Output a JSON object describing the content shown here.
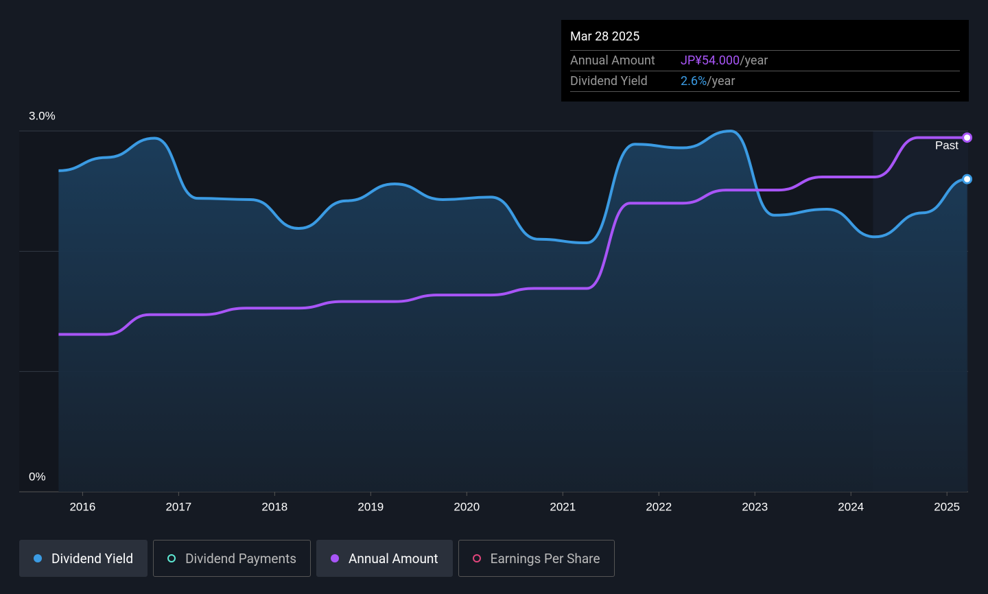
{
  "chart_data": {
    "type": "line",
    "tooltip": {
      "title": "Mar 28 2025",
      "rows": [
        {
          "label": "Annual Amount",
          "value_text": "JP¥54.000",
          "suffix": "/year",
          "color": "#a855f7"
        },
        {
          "label": "Dividend Yield",
          "value_text": "2.6%",
          "suffix": "/year",
          "color": "#3b9be3"
        }
      ]
    },
    "region_label": "Past",
    "region_start": 2024.23,
    "xlim": [
      2015.34,
      2025.22
    ],
    "xticks": [
      2016,
      2017,
      2018,
      2019,
      2020,
      2021,
      2022,
      2023,
      2024,
      2025
    ],
    "ylim": [
      0,
      3
    ],
    "yticks": [
      {
        "value": 0,
        "label": "0%"
      },
      {
        "value": 1,
        "label": null
      },
      {
        "value": 2,
        "label": null
      },
      {
        "value": 3,
        "label": "3.0%"
      }
    ],
    "y2lim": [
      0,
      55
    ],
    "series": [
      {
        "name": "Dividend Yield",
        "color": "#3b9be3",
        "visible": true,
        "x": [
          2015.75,
          2016.25,
          2016.75,
          2017.2,
          2017.75,
          2018.25,
          2018.75,
          2019.25,
          2019.75,
          2020.25,
          2020.75,
          2021.25,
          2021.75,
          2022.25,
          2022.75,
          2023.2,
          2023.75,
          2024.25,
          2024.75,
          2025.21
        ],
        "values": [
          2.67,
          2.78,
          2.94,
          2.44,
          2.43,
          2.19,
          2.42,
          2.56,
          2.43,
          2.45,
          2.1,
          2.07,
          2.89,
          2.86,
          3.0,
          2.3,
          2.35,
          2.12,
          2.32,
          2.6
        ]
      },
      {
        "name": "Dividend Payments",
        "color": "#5eead4",
        "visible": false,
        "x": [],
        "values": []
      },
      {
        "name": "Annual Amount",
        "color": "#a855f7",
        "visible": true,
        "axis": "y2",
        "x": [
          2015.75,
          2016.25,
          2016.7,
          2017.25,
          2017.7,
          2018.25,
          2018.7,
          2019.25,
          2019.7,
          2020.25,
          2020.7,
          2021.25,
          2021.7,
          2022.25,
          2022.7,
          2023.25,
          2023.7,
          2024.25,
          2024.7,
          2025.21
        ],
        "values": [
          24,
          24,
          27,
          27,
          28,
          28,
          29,
          29,
          30,
          30,
          31,
          31,
          44,
          44,
          46,
          46,
          48,
          48,
          54,
          54
        ]
      },
      {
        "name": "Earnings Per Share",
        "color": "#e0457b",
        "visible": false,
        "x": [],
        "values": []
      }
    ]
  }
}
